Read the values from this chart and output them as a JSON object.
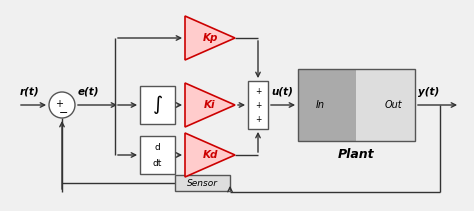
{
  "bg_color": "#f0f0f0",
  "line_color": "#333333",
  "gain_fill": "#ffcccc",
  "gain_edge": "#cc0000",
  "block_fill": "#ffffff",
  "block_edge": "#555555",
  "sensor_fill": "#dddddd",
  "sensor_edge": "#555555",
  "plant_fill_left": "#aaaaaa",
  "plant_fill_right": "#dddddd",
  "plant_edge": "#555555",
  "sum_fill": "#ffffff",
  "sum_edge": "#555555",
  "sp_fill": "#ffffff",
  "sp_edge": "#555555",
  "label_r": "r(t)",
  "label_e": "e(t)",
  "label_u": "u(t)",
  "label_y": "y(t)",
  "label_kp": "Kp",
  "label_ki": "Ki",
  "label_kd": "Kd",
  "label_int": "∫",
  "label_in": "In",
  "label_out": "Out",
  "label_plant": "Plant",
  "label_sensor": "Sensor",
  "figsize": [
    4.74,
    2.11
  ],
  "dpi": 100
}
